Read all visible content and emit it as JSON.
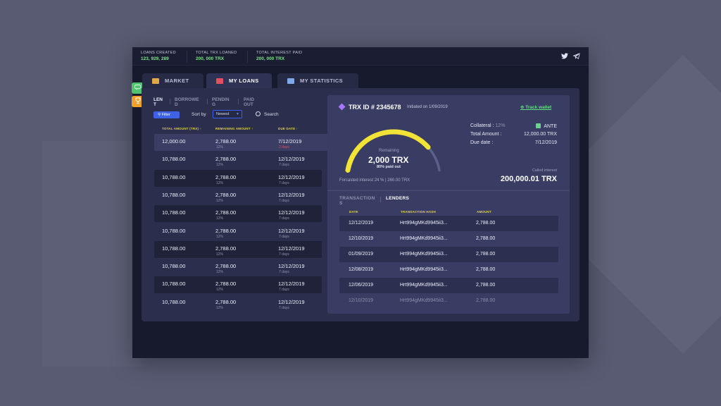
{
  "stats": [
    {
      "label": "LOANS CREATED",
      "value": "123, 929, 289"
    },
    {
      "label": "TOTAL TRX LOANED",
      "value": "200, 000 TRX"
    },
    {
      "label": "TOTAL INTEREST PAID",
      "value": "200, 000 TRX"
    }
  ],
  "social": {
    "twitter": "twitter-icon",
    "telegram": "telegram-icon"
  },
  "tabs": [
    {
      "label": "MARKET",
      "icon": "market-icon"
    },
    {
      "label": "MY LOANS",
      "icon": "wallet-icon"
    },
    {
      "label": "MY STATISTICS",
      "icon": "statistics-icon"
    }
  ],
  "list_tabs": [
    {
      "label": "LEN\nT"
    },
    {
      "label": "BORROWE\nD"
    },
    {
      "label": "PENDIN\nG"
    },
    {
      "label": "PAID\nOUT"
    }
  ],
  "controls": {
    "filter": "Filter",
    "sort_label": "Sort by",
    "sort_value": "Newest",
    "search": "Search"
  },
  "table": {
    "headers": [
      "TOTAL AMOUNT (TRX) ↑",
      "REMAINING AMOUNT ↑",
      "DUE DATE ↑"
    ],
    "rows": [
      {
        "total": "12,000.00",
        "remaining": "2,788.00",
        "pct": "12%",
        "due": "7/12/2019",
        "days": "2 days"
      },
      {
        "total": "10,788.00",
        "remaining": "2,788.00",
        "pct": "12%",
        "due": "12/12/2019",
        "days": "7 days"
      },
      {
        "total": "10,788.00",
        "remaining": "2,788.00",
        "pct": "12%",
        "due": "12/12/2019",
        "days": "7 days"
      },
      {
        "total": "10,788.00",
        "remaining": "2,788.00",
        "pct": "12%",
        "due": "12/12/2019",
        "days": "7 days"
      },
      {
        "total": "10,788.00",
        "remaining": "2,788.00",
        "pct": "12%",
        "due": "12/12/2019",
        "days": "7 days"
      },
      {
        "total": "10,788.00",
        "remaining": "2,788.00",
        "pct": "12%",
        "due": "12/12/2019",
        "days": "7 days"
      },
      {
        "total": "10,788.00",
        "remaining": "2,788.00",
        "pct": "12%",
        "due": "12/12/2019",
        "days": "7 days"
      },
      {
        "total": "10,788.00",
        "remaining": "2,788.00",
        "pct": "12%",
        "due": "12/12/2019",
        "days": "7 days"
      },
      {
        "total": "10,788.00",
        "remaining": "2,788.00",
        "pct": "12%",
        "due": "12/12/2019",
        "days": "7 days"
      },
      {
        "total": "10,788.00",
        "remaining": "2,788.00",
        "pct": "12%",
        "due": "12/12/2019",
        "days": "7 days"
      }
    ]
  },
  "detail": {
    "trx_id": "TRX ID # 2345678",
    "initiated": "Initiated on 1/09/2019",
    "track_wallet": "Track wallet",
    "remaining_label": "Remaining",
    "remaining_amount": "2,000 TRX",
    "paid_out": "80% paid out",
    "paid_fraction": 0.8,
    "forecast": "Forcasted interest 24 %  |  260.00 TRX",
    "collateral_label": "Collateral : ",
    "collateral_pct": "12%",
    "collateral_value": "ANTE",
    "total_amount_label": "Total Amount :",
    "total_amount_value": "12,000.00 TRX",
    "due_date_label": "Due date :",
    "due_date_value": "7/12/2019",
    "collected_label": "Called interest",
    "collected_value": "200,000.01 TRX",
    "colors": {
      "gauge": "#f2e437",
      "gauge_track": "#5b608a"
    }
  },
  "sub_tabs": [
    {
      "label": "TRANSACTION\nS"
    },
    {
      "label": "LENDERS"
    }
  ],
  "transactions": {
    "headers": [
      "DATE",
      "TRANSACTION HASH",
      "AMOUNT"
    ],
    "rows": [
      {
        "date": "12/12/2019",
        "hash": "Hrt994gMKd9945ii3...",
        "amount": "2,788.00"
      },
      {
        "date": "12/10/2019",
        "hash": "Hrt994gMKd9945ii3...",
        "amount": "2,788.00"
      },
      {
        "date": "01/09/2019",
        "hash": "Hrt994gMKd9945ii3...",
        "amount": "2,788.00"
      },
      {
        "date": "12/08/2019",
        "hash": "Hrt994gMKd9945ii3...",
        "amount": "2,788.00"
      },
      {
        "date": "12/06/2019",
        "hash": "Hrt994gMKd9945ii3...",
        "amount": "2,788.00"
      },
      {
        "date": "12/10/2019",
        "hash": "Hrt994gMKd9945ii3...",
        "amount": "2,788.00"
      }
    ]
  }
}
